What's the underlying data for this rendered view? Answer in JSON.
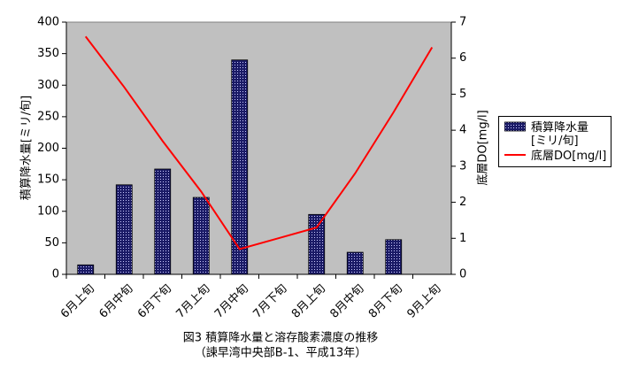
{
  "chart_data": {
    "type": "bar-line",
    "title": "図3  積算降水量と溶存酸素濃度の推移",
    "subtitle": "（諫早湾中央部B-1、平成13年）",
    "y_label": "積算降水量[ミリ/旬]",
    "y2_label": "底層DO[mg/l]",
    "categories": [
      "6月上旬",
      "6月中旬",
      "6月下旬",
      "7月上旬",
      "7月中旬",
      "7月下旬",
      "8月上旬",
      "8月中旬",
      "8月下旬",
      "9月上旬"
    ],
    "series": [
      {
        "name": "積算降水量[ミリ/旬]",
        "type": "bar",
        "color": "#333399",
        "values": [
          15,
          142,
          167,
          122,
          340,
          null,
          95,
          35,
          55,
          null
        ]
      },
      {
        "name": "底層DO[mg/l]",
        "type": "line",
        "axis": "y2",
        "color": "#ff0000",
        "values": [
          6.6,
          5.2,
          3.7,
          2.3,
          0.7,
          1.0,
          1.3,
          2.8,
          4.5,
          6.3
        ]
      }
    ],
    "ylim": [
      0,
      400
    ],
    "yticks": [
      0,
      50,
      100,
      150,
      200,
      250,
      300,
      350,
      400
    ],
    "y2lim": [
      0,
      7
    ],
    "y2ticks": [
      0,
      1,
      2,
      3,
      4,
      5,
      6,
      7
    ],
    "plot_background": "#c0c0c0"
  }
}
